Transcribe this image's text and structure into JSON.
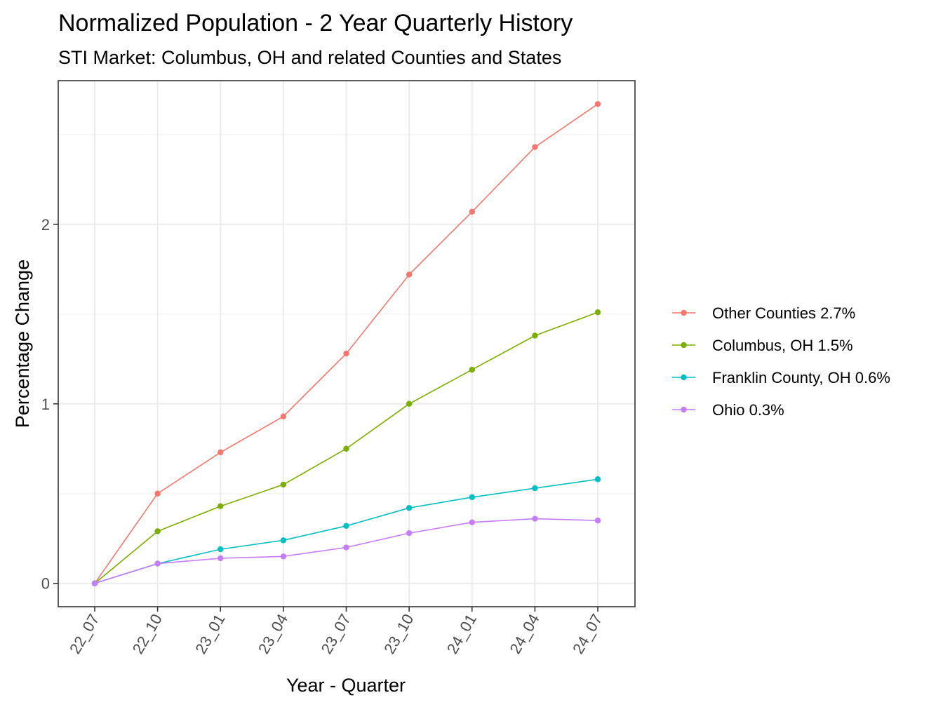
{
  "chart_data": {
    "type": "line",
    "title": "Normalized Population - 2 Year Quarterly History",
    "subtitle": "STI Market: Columbus, OH and related Counties and States",
    "xlabel": "Year - Quarter",
    "ylabel": "Percentage Change",
    "categories": [
      "22_07",
      "22_10",
      "23_01",
      "23_04",
      "23_07",
      "23_10",
      "24_01",
      "24_04",
      "24_07"
    ],
    "y_ticks": [
      0,
      1,
      2
    ],
    "ylim": [
      -0.13,
      2.8
    ],
    "grid": true,
    "legend_position": "right",
    "series": [
      {
        "name": "Other Counties 2.7%",
        "color": "#F8766D",
        "values": [
          0,
          0.5,
          0.73,
          0.93,
          1.28,
          1.72,
          2.07,
          2.43,
          2.67
        ]
      },
      {
        "name": "Columbus, OH 1.5%",
        "color": "#7CAE00",
        "values": [
          0,
          0.29,
          0.43,
          0.55,
          0.75,
          1.0,
          1.19,
          1.38,
          1.51
        ]
      },
      {
        "name": "Franklin County, OH 0.6%",
        "color": "#00BFC4",
        "values": [
          0,
          0.11,
          0.19,
          0.24,
          0.32,
          0.42,
          0.48,
          0.53,
          0.58
        ]
      },
      {
        "name": "Ohio 0.3%",
        "color": "#C77CFF",
        "values": [
          0,
          0.11,
          0.14,
          0.15,
          0.2,
          0.28,
          0.34,
          0.36,
          0.35
        ]
      }
    ]
  }
}
